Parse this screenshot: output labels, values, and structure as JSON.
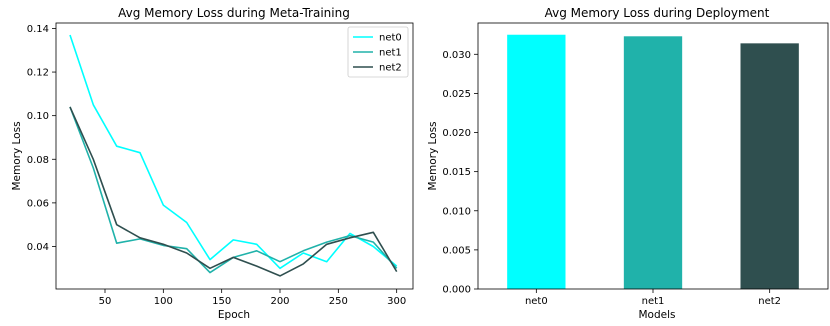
{
  "chart_data": [
    {
      "type": "line",
      "title": "Avg Memory Loss during Meta-Training",
      "xlabel": "Epoch",
      "ylabel": "Memory Loss",
      "xlim": [
        8,
        314
      ],
      "ylim": [
        0.0205,
        0.1425
      ],
      "xticks": [
        50,
        100,
        150,
        200,
        250,
        300
      ],
      "yticks": [
        0.04,
        0.06,
        0.08,
        0.1,
        0.12,
        0.14
      ],
      "ytick_labels": [
        "0.04",
        "0.06",
        "0.08",
        "0.10",
        "0.12",
        "0.14"
      ],
      "grid": false,
      "legend": "top-right",
      "x": [
        20,
        40,
        60,
        80,
        100,
        120,
        140,
        160,
        180,
        200,
        220,
        240,
        260,
        280,
        300
      ],
      "series": [
        {
          "name": "net0",
          "color": "#00ffff",
          "values": [
            0.137,
            0.105,
            0.086,
            0.083,
            0.059,
            0.051,
            0.034,
            0.043,
            0.041,
            0.03,
            0.037,
            0.033,
            0.046,
            0.04,
            0.031
          ]
        },
        {
          "name": "net1",
          "color": "#20b2aa",
          "values": [
            0.104,
            0.076,
            0.0415,
            0.0435,
            0.0405,
            0.039,
            0.028,
            0.035,
            0.038,
            0.033,
            0.038,
            0.042,
            0.045,
            0.042,
            0.03
          ]
        },
        {
          "name": "net2",
          "color": "#2f4f4f",
          "values": [
            0.104,
            0.08,
            0.05,
            0.044,
            0.041,
            0.037,
            0.03,
            0.035,
            0.031,
            0.0265,
            0.032,
            0.041,
            0.044,
            0.0465,
            0.0285
          ]
        }
      ]
    },
    {
      "type": "bar",
      "title": "Avg Memory Loss during Deployment",
      "xlabel": "Models",
      "ylabel": "Memory Loss",
      "categories": [
        "net0",
        "net1",
        "net2"
      ],
      "values": [
        0.0325,
        0.0323,
        0.0314
      ],
      "colors": [
        "#00ffff",
        "#20b2aa",
        "#2f4f4f"
      ],
      "ylim": [
        0,
        0.034
      ],
      "yticks": [
        0.0,
        0.005,
        0.01,
        0.015,
        0.02,
        0.025,
        0.03
      ],
      "ytick_labels": [
        "0.000",
        "0.005",
        "0.010",
        "0.015",
        "0.020",
        "0.025",
        "0.030"
      ],
      "grid": false
    }
  ]
}
